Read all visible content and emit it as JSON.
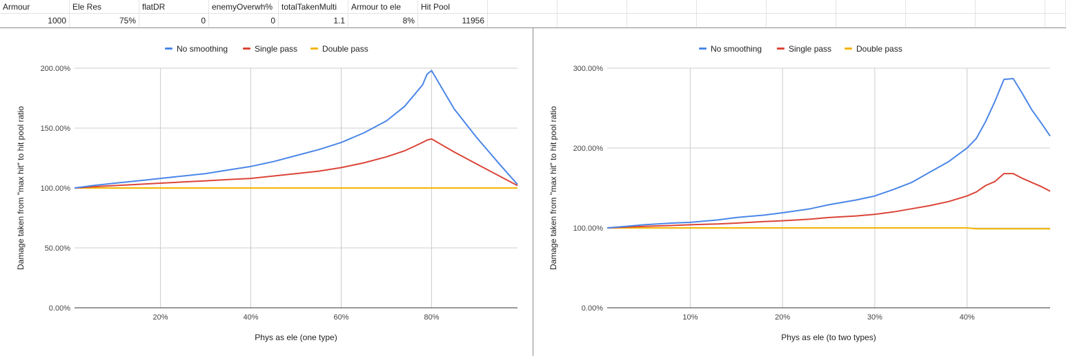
{
  "sheet": {
    "headers": [
      "Armour",
      "Ele Res",
      "flatDR",
      "enemyOverwh%",
      "totalTakenMulti",
      "Armour to ele",
      "Hit Pool"
    ],
    "values": [
      "1000",
      "75%",
      "0",
      "0",
      "1.1",
      "8%",
      "11956"
    ]
  },
  "colors": {
    "no_smoothing": "#4a86e8",
    "single_pass": "#db4437",
    "double_pass": "#f4b400",
    "grid": "#cccccc",
    "axis_text": "#444444"
  },
  "chart_data": [
    {
      "type": "line",
      "title": "",
      "xlabel": "Phys as ele (one type)",
      "ylabel": "Damage taken from \"max hit\" to hit pool ratio",
      "legend_position": "top",
      "grid": true,
      "xlim": [
        0.01,
        0.99
      ],
      "ylim": [
        0,
        2
      ],
      "x_ticks": [
        "20%",
        "40%",
        "60%",
        "80%"
      ],
      "x_tick_values": [
        0.2,
        0.4,
        0.6,
        0.8
      ],
      "y_ticks": [
        "0.00%",
        "50.00%",
        "100.00%",
        "150.00%",
        "200.00%"
      ],
      "y_tick_values": [
        0,
        0.5,
        1,
        1.5,
        2
      ],
      "x": [
        0.01,
        0.05,
        0.1,
        0.15,
        0.2,
        0.25,
        0.3,
        0.35,
        0.4,
        0.45,
        0.5,
        0.55,
        0.6,
        0.65,
        0.7,
        0.74,
        0.78,
        0.79,
        0.8,
        0.85,
        0.9,
        0.95,
        0.99
      ],
      "series": [
        {
          "name": "No smoothing",
          "values": [
            1.0,
            1.02,
            1.04,
            1.06,
            1.08,
            1.1,
            1.12,
            1.15,
            1.18,
            1.22,
            1.27,
            1.32,
            1.38,
            1.46,
            1.56,
            1.68,
            1.86,
            1.95,
            1.98,
            1.66,
            1.42,
            1.2,
            1.03
          ]
        },
        {
          "name": "Single pass",
          "values": [
            1.0,
            1.01,
            1.02,
            1.03,
            1.04,
            1.05,
            1.06,
            1.07,
            1.08,
            1.1,
            1.12,
            1.14,
            1.17,
            1.21,
            1.26,
            1.31,
            1.38,
            1.4,
            1.41,
            1.3,
            1.2,
            1.1,
            1.02
          ]
        },
        {
          "name": "Double pass",
          "values": [
            1.0,
            1.0,
            1.0,
            1.0,
            1.0,
            1.0,
            1.0,
            1.0,
            1.0,
            1.0,
            1.0,
            1.0,
            1.0,
            1.0,
            1.0,
            1.0,
            1.0,
            1.0,
            1.0,
            1.0,
            1.0,
            1.0,
            1.0
          ]
        }
      ]
    },
    {
      "type": "line",
      "title": "",
      "xlabel": "Phys as ele (to two types)",
      "ylabel": "Damage taken from \"max hit\" to hit pool ratio",
      "legend_position": "top",
      "grid": true,
      "xlim": [
        0.01,
        0.49
      ],
      "ylim": [
        0,
        3
      ],
      "x_ticks": [
        "10%",
        "20%",
        "30%",
        "40%"
      ],
      "x_tick_values": [
        0.1,
        0.2,
        0.3,
        0.4
      ],
      "y_ticks": [
        "0.00%",
        "100.00%",
        "200.00%",
        "300.00%"
      ],
      "y_tick_values": [
        0,
        1,
        2,
        3
      ],
      "x": [
        0.01,
        0.03,
        0.05,
        0.08,
        0.1,
        0.13,
        0.15,
        0.18,
        0.2,
        0.23,
        0.25,
        0.28,
        0.3,
        0.32,
        0.34,
        0.36,
        0.38,
        0.4,
        0.41,
        0.42,
        0.43,
        0.44,
        0.45,
        0.46,
        0.47,
        0.48,
        0.49
      ],
      "series": [
        {
          "name": "No smoothing",
          "values": [
            1.0,
            1.02,
            1.04,
            1.06,
            1.07,
            1.1,
            1.13,
            1.16,
            1.19,
            1.24,
            1.29,
            1.35,
            1.4,
            1.48,
            1.57,
            1.7,
            1.83,
            2.0,
            2.12,
            2.33,
            2.58,
            2.86,
            2.87,
            2.68,
            2.48,
            2.32,
            2.15
          ]
        },
        {
          "name": "Single pass",
          "values": [
            1.0,
            1.01,
            1.02,
            1.03,
            1.04,
            1.05,
            1.06,
            1.08,
            1.09,
            1.11,
            1.13,
            1.15,
            1.17,
            1.2,
            1.24,
            1.28,
            1.33,
            1.4,
            1.45,
            1.53,
            1.58,
            1.68,
            1.68,
            1.62,
            1.57,
            1.52,
            1.46
          ]
        },
        {
          "name": "Double pass",
          "values": [
            1.0,
            1.0,
            1.0,
            1.0,
            1.0,
            1.0,
            1.0,
            1.0,
            1.0,
            1.0,
            1.0,
            1.0,
            1.0,
            1.0,
            1.0,
            1.0,
            1.0,
            1.0,
            0.99,
            0.99,
            0.99,
            0.99,
            0.99,
            0.99,
            0.99,
            0.99,
            0.99
          ]
        }
      ]
    }
  ]
}
